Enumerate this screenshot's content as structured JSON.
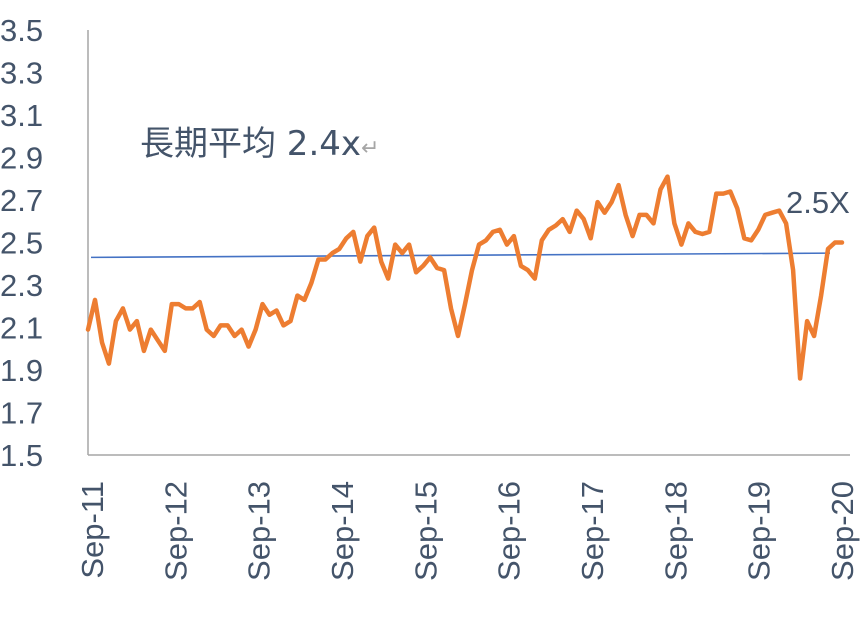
{
  "chart_data": {
    "type": "line",
    "title": "",
    "xlabel": "",
    "ylabel": "",
    "ylim": [
      1.5,
      3.5
    ],
    "y_ticks": [
      "3.5",
      "3.3",
      "3.1",
      "2.9",
      "2.7",
      "2.5",
      "2.3",
      "2.1",
      "1.9",
      "1.7",
      "1.5"
    ],
    "x_ticks": [
      "Sep-11",
      "Sep-12",
      "Sep-13",
      "Sep-14",
      "Sep-15",
      "Sep-16",
      "Sep-17",
      "Sep-18",
      "Sep-19",
      "Sep-20"
    ],
    "grid": false,
    "annotation": "長期平均  2.4x",
    "annotation_mark": "↵",
    "end_label": "2.5X",
    "colors": {
      "series": "#ed7d31",
      "average": "#4472c4",
      "axis": "#a6a6a6",
      "text": "#44546a"
    },
    "x_start": "Sep-11",
    "x_end": "Sep-20",
    "series": [
      {
        "values": [
          2.09,
          2.23,
          2.03,
          1.93,
          2.13,
          2.19,
          2.09,
          2.13,
          1.99,
          2.09,
          2.04,
          1.99,
          2.21,
          2.21,
          2.19,
          2.19,
          2.22,
          2.09,
          2.06,
          2.11,
          2.11,
          2.06,
          2.09,
          2.01,
          2.09,
          2.21,
          2.16,
          2.18,
          2.11,
          2.13,
          2.25,
          2.23,
          2.31,
          2.42,
          2.42,
          2.45,
          2.47,
          2.52,
          2.55,
          2.41,
          2.53,
          2.57,
          2.41,
          2.33,
          2.49,
          2.45,
          2.49,
          2.36,
          2.39,
          2.43,
          2.38,
          2.37,
          2.19,
          2.06,
          2.21,
          2.37,
          2.49,
          2.51,
          2.55,
          2.56,
          2.49,
          2.53,
          2.39,
          2.37,
          2.33,
          2.51,
          2.56,
          2.58,
          2.61,
          2.55,
          2.65,
          2.61,
          2.52,
          2.69,
          2.64,
          2.69,
          2.77,
          2.63,
          2.53,
          2.63,
          2.63,
          2.59,
          2.75,
          2.81,
          2.59,
          2.49,
          2.59,
          2.55,
          2.54,
          2.55,
          2.73,
          2.73,
          2.74,
          2.66,
          2.52,
          2.51,
          2.56,
          2.63,
          2.64,
          2.65,
          2.59,
          2.37,
          1.86,
          2.13,
          2.06,
          2.25,
          2.47,
          2.5,
          2.5
        ]
      },
      {
        "values": [
          2.43,
          2.45
        ]
      }
    ]
  }
}
